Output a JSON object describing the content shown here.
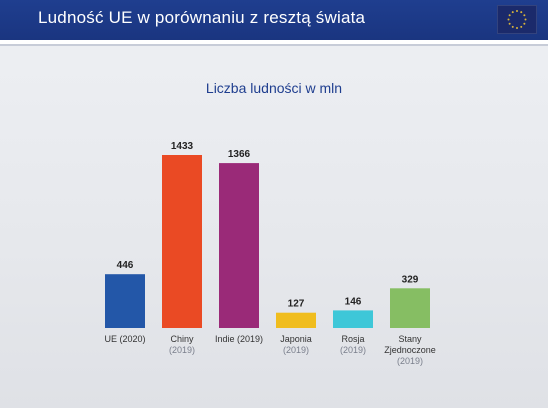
{
  "header": {
    "title": "Ludność UE w porównaniu z resztą świata",
    "flag_icon": "eu-flag-icon",
    "colors": {
      "background": "#1f3e8f",
      "text": "#ffffff"
    }
  },
  "chart_data": {
    "type": "bar",
    "title": "Liczba ludności w mln",
    "categories": [
      {
        "lines": [
          "UE (2020)"
        ]
      },
      {
        "lines": [
          "Chiny",
          "(2019)"
        ]
      },
      {
        "lines": [
          "Indie (2019)"
        ]
      },
      {
        "lines": [
          "Japonia",
          "(2019)"
        ]
      },
      {
        "lines": [
          "Rosja",
          "(2019)"
        ]
      },
      {
        "lines": [
          "Stany",
          "Zjednoczone",
          "(2019)"
        ]
      }
    ],
    "values": [
      446,
      1433,
      1366,
      127,
      146,
      329
    ],
    "colors": [
      "#2357a8",
      "#ea4a24",
      "#9a2a78",
      "#f0bd1e",
      "#3ec7d8",
      "#86be63"
    ],
    "ylim": [
      0,
      1433
    ],
    "grid": false,
    "legend": "none",
    "data_labels": true
  }
}
